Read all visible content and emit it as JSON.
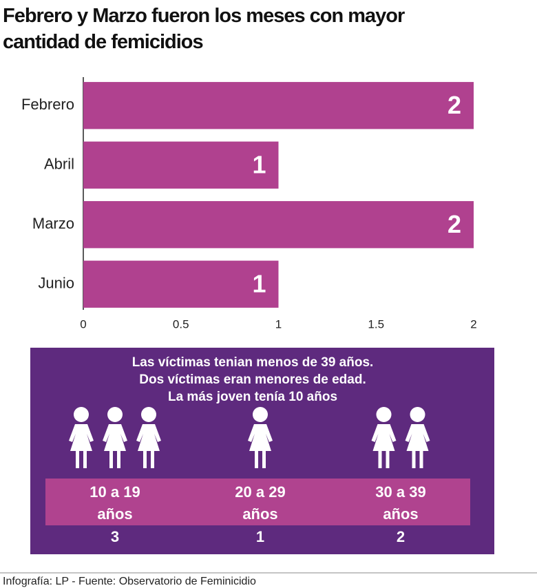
{
  "chart_data": {
    "type": "bar",
    "orientation": "horizontal",
    "title": "Febrero y Marzo fueron los meses con mayor cantidad de femicidios",
    "categories": [
      "Febrero",
      "Abril",
      "Marzo",
      "Junio"
    ],
    "values": [
      2,
      1,
      2,
      1
    ],
    "color": "#b0418f",
    "xlim": [
      0,
      2
    ],
    "xticks": [
      0,
      0.5,
      1,
      1.5,
      2
    ],
    "grid": false
  },
  "infobox": {
    "lines": [
      "Las víctimas tenian menos de 39 años.",
      "Dos víctimas eran menores de edad.",
      "La más joven tenía 10 años"
    ],
    "groups": [
      {
        "label_lines": [
          "10 a 19",
          "años"
        ],
        "count": 3
      },
      {
        "label_lines": [
          "20 a 29",
          "años"
        ],
        "count": 1
      },
      {
        "label_lines": [
          "30 a 39",
          "años"
        ],
        "count": 2
      }
    ]
  },
  "footer": "Infografía: LP - Fuente: Observatorio de Feminicidio"
}
